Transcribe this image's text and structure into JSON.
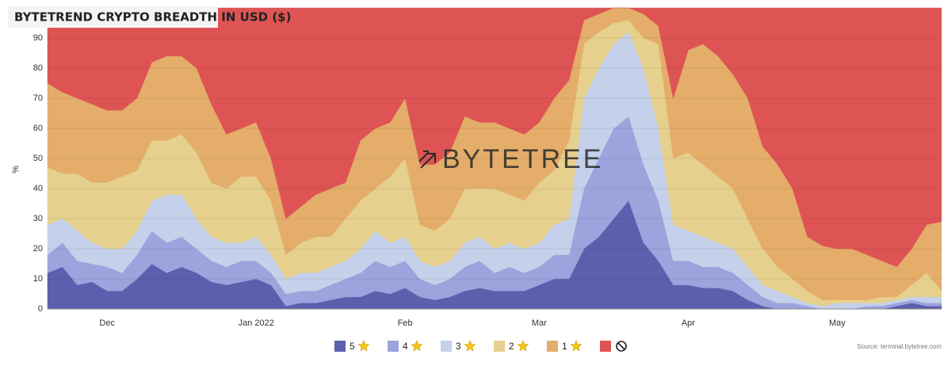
{
  "chart_data": {
    "type": "stacked_area",
    "title": "BYTETREND CRYPTO BREADTH IN USD ($)",
    "y_label": "%",
    "watermark": "BYTETREE",
    "source": "Source: terminal.bytetree.com",
    "ylim": [
      0,
      100
    ],
    "yticks": [
      0,
      10,
      20,
      30,
      40,
      50,
      60,
      70,
      80,
      90
    ],
    "grid": true,
    "categories": [
      null,
      null,
      null,
      null,
      "Dec",
      null,
      null,
      null,
      null,
      null,
      null,
      null,
      null,
      null,
      "Jan 2022",
      null,
      null,
      null,
      null,
      null,
      null,
      null,
      null,
      null,
      "Feb",
      null,
      null,
      null,
      null,
      null,
      null,
      null,
      null,
      "Mar",
      null,
      null,
      null,
      null,
      null,
      null,
      null,
      null,
      null,
      "Apr",
      null,
      null,
      null,
      null,
      null,
      null,
      null,
      null,
      null,
      "May",
      null,
      null,
      null,
      null,
      null,
      null,
      null
    ],
    "series": [
      {
        "name": "5",
        "color": "#5b5fae",
        "values": [
          12,
          14,
          8,
          9,
          6,
          6,
          10,
          15,
          12,
          14,
          12,
          9,
          8,
          9,
          10,
          8,
          1,
          2,
          2,
          3,
          4,
          4,
          6,
          5,
          7,
          4,
          3,
          4,
          6,
          7,
          6,
          6,
          6,
          8,
          10,
          10,
          20,
          24,
          30,
          36,
          22,
          16,
          8,
          8,
          7,
          7,
          6,
          3,
          1,
          0,
          0,
          0,
          0,
          0,
          0,
          0,
          0,
          1,
          2,
          1,
          1
        ]
      },
      {
        "name": "4",
        "color": "#9da3dc",
        "values": [
          6,
          8,
          8,
          6,
          8,
          6,
          8,
          11,
          10,
          10,
          8,
          7,
          6,
          7,
          6,
          4,
          4,
          4,
          4,
          5,
          6,
          8,
          10,
          9,
          9,
          6,
          5,
          6,
          8,
          9,
          6,
          8,
          6,
          6,
          8,
          8,
          20,
          26,
          30,
          28,
          26,
          20,
          8,
          8,
          7,
          7,
          6,
          5,
          3,
          2,
          2,
          1,
          0,
          0,
          0,
          1,
          1,
          1,
          1,
          1,
          1
        ]
      },
      {
        "name": "3",
        "color": "#c5d0ea",
        "values": [
          10,
          8,
          10,
          7,
          6,
          8,
          8,
          10,
          16,
          14,
          10,
          8,
          8,
          6,
          8,
          6,
          5,
          6,
          6,
          6,
          6,
          8,
          10,
          8,
          8,
          6,
          6,
          6,
          8,
          8,
          8,
          8,
          8,
          8,
          10,
          12,
          30,
          30,
          28,
          28,
          32,
          24,
          12,
          10,
          10,
          8,
          8,
          6,
          4,
          4,
          2,
          1,
          1,
          2,
          2,
          1,
          1,
          1,
          1,
          2,
          2
        ]
      },
      {
        "name": "2",
        "color": "#e6d08e",
        "values": [
          19,
          15,
          19,
          20,
          22,
          24,
          20,
          20,
          18,
          20,
          22,
          18,
          18,
          22,
          20,
          18,
          8,
          10,
          12,
          10,
          14,
          16,
          14,
          22,
          26,
          12,
          12,
          14,
          18,
          16,
          20,
          16,
          16,
          20,
          18,
          26,
          18,
          12,
          7,
          4,
          10,
          28,
          22,
          26,
          24,
          22,
          20,
          16,
          12,
          8,
          6,
          4,
          2,
          1,
          1,
          1,
          2,
          1,
          4,
          8,
          2
        ]
      },
      {
        "name": "1",
        "color": "#e4ad6a",
        "values": [
          28,
          27,
          25,
          26,
          24,
          22,
          24,
          26,
          28,
          26,
          28,
          26,
          18,
          16,
          18,
          14,
          12,
          12,
          14,
          16,
          12,
          20,
          20,
          18,
          20,
          20,
          22,
          22,
          24,
          22,
          22,
          22,
          22,
          20,
          24,
          20,
          8,
          6,
          5,
          4,
          8,
          6,
          20,
          34,
          40,
          40,
          38,
          40,
          34,
          34,
          30,
          18,
          18,
          17,
          17,
          15,
          12,
          10,
          12,
          16,
          23
        ]
      },
      {
        "name": null,
        "color": "#de5454",
        "values": [
          25,
          28,
          30,
          32,
          34,
          34,
          30,
          18,
          16,
          16,
          20,
          32,
          42,
          40,
          38,
          50,
          70,
          66,
          62,
          60,
          58,
          44,
          40,
          38,
          30,
          52,
          52,
          48,
          36,
          38,
          38,
          40,
          42,
          38,
          30,
          24,
          4,
          2,
          0,
          0,
          2,
          6,
          30,
          14,
          12,
          16,
          22,
          30,
          46,
          52,
          60,
          76,
          79,
          80,
          80,
          82,
          84,
          86,
          80,
          72,
          71
        ]
      }
    ]
  }
}
